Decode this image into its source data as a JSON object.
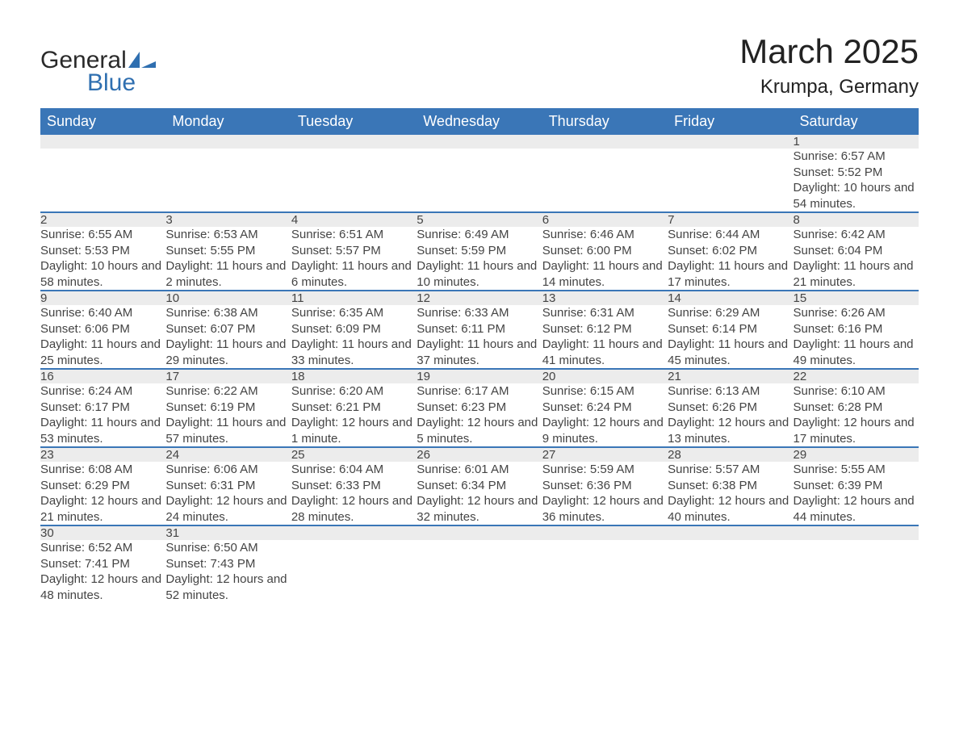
{
  "brand": {
    "word1": "General",
    "word2": "Blue",
    "accent": "#2f6fb0"
  },
  "title": "March 2025",
  "location": "Krumpa, Germany",
  "header_bg": "#3a76b7",
  "daynum_bg": "#ececec",
  "columns": [
    "Sunday",
    "Monday",
    "Tuesday",
    "Wednesday",
    "Thursday",
    "Friday",
    "Saturday"
  ],
  "weeks": [
    [
      null,
      null,
      null,
      null,
      null,
      null,
      {
        "n": "1",
        "sunrise": "6:57 AM",
        "sunset": "5:52 PM",
        "daylight": "10 hours and 54 minutes."
      }
    ],
    [
      {
        "n": "2",
        "sunrise": "6:55 AM",
        "sunset": "5:53 PM",
        "daylight": "10 hours and 58 minutes."
      },
      {
        "n": "3",
        "sunrise": "6:53 AM",
        "sunset": "5:55 PM",
        "daylight": "11 hours and 2 minutes."
      },
      {
        "n": "4",
        "sunrise": "6:51 AM",
        "sunset": "5:57 PM",
        "daylight": "11 hours and 6 minutes."
      },
      {
        "n": "5",
        "sunrise": "6:49 AM",
        "sunset": "5:59 PM",
        "daylight": "11 hours and 10 minutes."
      },
      {
        "n": "6",
        "sunrise": "6:46 AM",
        "sunset": "6:00 PM",
        "daylight": "11 hours and 14 minutes."
      },
      {
        "n": "7",
        "sunrise": "6:44 AM",
        "sunset": "6:02 PM",
        "daylight": "11 hours and 17 minutes."
      },
      {
        "n": "8",
        "sunrise": "6:42 AM",
        "sunset": "6:04 PM",
        "daylight": "11 hours and 21 minutes."
      }
    ],
    [
      {
        "n": "9",
        "sunrise": "6:40 AM",
        "sunset": "6:06 PM",
        "daylight": "11 hours and 25 minutes."
      },
      {
        "n": "10",
        "sunrise": "6:38 AM",
        "sunset": "6:07 PM",
        "daylight": "11 hours and 29 minutes."
      },
      {
        "n": "11",
        "sunrise": "6:35 AM",
        "sunset": "6:09 PM",
        "daylight": "11 hours and 33 minutes."
      },
      {
        "n": "12",
        "sunrise": "6:33 AM",
        "sunset": "6:11 PM",
        "daylight": "11 hours and 37 minutes."
      },
      {
        "n": "13",
        "sunrise": "6:31 AM",
        "sunset": "6:12 PM",
        "daylight": "11 hours and 41 minutes."
      },
      {
        "n": "14",
        "sunrise": "6:29 AM",
        "sunset": "6:14 PM",
        "daylight": "11 hours and 45 minutes."
      },
      {
        "n": "15",
        "sunrise": "6:26 AM",
        "sunset": "6:16 PM",
        "daylight": "11 hours and 49 minutes."
      }
    ],
    [
      {
        "n": "16",
        "sunrise": "6:24 AM",
        "sunset": "6:17 PM",
        "daylight": "11 hours and 53 minutes."
      },
      {
        "n": "17",
        "sunrise": "6:22 AM",
        "sunset": "6:19 PM",
        "daylight": "11 hours and 57 minutes."
      },
      {
        "n": "18",
        "sunrise": "6:20 AM",
        "sunset": "6:21 PM",
        "daylight": "12 hours and 1 minute."
      },
      {
        "n": "19",
        "sunrise": "6:17 AM",
        "sunset": "6:23 PM",
        "daylight": "12 hours and 5 minutes."
      },
      {
        "n": "20",
        "sunrise": "6:15 AM",
        "sunset": "6:24 PM",
        "daylight": "12 hours and 9 minutes."
      },
      {
        "n": "21",
        "sunrise": "6:13 AM",
        "sunset": "6:26 PM",
        "daylight": "12 hours and 13 minutes."
      },
      {
        "n": "22",
        "sunrise": "6:10 AM",
        "sunset": "6:28 PM",
        "daylight": "12 hours and 17 minutes."
      }
    ],
    [
      {
        "n": "23",
        "sunrise": "6:08 AM",
        "sunset": "6:29 PM",
        "daylight": "12 hours and 21 minutes."
      },
      {
        "n": "24",
        "sunrise": "6:06 AM",
        "sunset": "6:31 PM",
        "daylight": "12 hours and 24 minutes."
      },
      {
        "n": "25",
        "sunrise": "6:04 AM",
        "sunset": "6:33 PM",
        "daylight": "12 hours and 28 minutes."
      },
      {
        "n": "26",
        "sunrise": "6:01 AM",
        "sunset": "6:34 PM",
        "daylight": "12 hours and 32 minutes."
      },
      {
        "n": "27",
        "sunrise": "5:59 AM",
        "sunset": "6:36 PM",
        "daylight": "12 hours and 36 minutes."
      },
      {
        "n": "28",
        "sunrise": "5:57 AM",
        "sunset": "6:38 PM",
        "daylight": "12 hours and 40 minutes."
      },
      {
        "n": "29",
        "sunrise": "5:55 AM",
        "sunset": "6:39 PM",
        "daylight": "12 hours and 44 minutes."
      }
    ],
    [
      {
        "n": "30",
        "sunrise": "6:52 AM",
        "sunset": "7:41 PM",
        "daylight": "12 hours and 48 minutes."
      },
      {
        "n": "31",
        "sunrise": "6:50 AM",
        "sunset": "7:43 PM",
        "daylight": "12 hours and 52 minutes."
      },
      null,
      null,
      null,
      null,
      null
    ]
  ],
  "labels": {
    "sunrise": "Sunrise: ",
    "sunset": "Sunset: ",
    "daylight": "Daylight: "
  }
}
